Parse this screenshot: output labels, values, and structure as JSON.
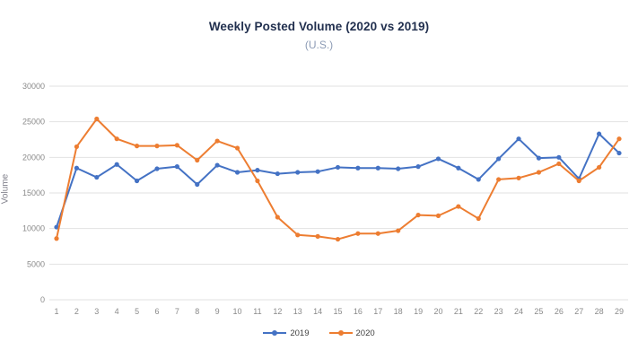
{
  "title": "Weekly Posted Volume (2020 vs 2019)",
  "subtitle": "(U.S.)",
  "colors": {
    "title": "#22304F",
    "subtitle": "#8C9BB5",
    "axis_text": "#8A8A8A",
    "gridline": "#E2E2E2",
    "series_2019": "#4472C4",
    "series_2020": "#ED7D31"
  },
  "chart_data": {
    "type": "line",
    "title": "Weekly Posted Volume (2020 vs 2019)",
    "subtitle": "(U.S.)",
    "xlabel": "",
    "ylabel": "Volume",
    "x": [
      1,
      2,
      3,
      4,
      5,
      6,
      7,
      8,
      9,
      10,
      11,
      12,
      13,
      14,
      15,
      16,
      17,
      18,
      19,
      20,
      21,
      22,
      23,
      24,
      25,
      26,
      27,
      28,
      29
    ],
    "series": [
      {
        "name": "2019",
        "color": "#4472C4",
        "values": [
          10200,
          18500,
          17200,
          19000,
          16700,
          18400,
          18700,
          16200,
          18900,
          17900,
          18200,
          17700,
          17900,
          18000,
          18600,
          18500,
          18500,
          18400,
          18700,
          19800,
          18500,
          16900,
          19800,
          22600,
          19900,
          20000,
          17000,
          23300,
          20600
        ]
      },
      {
        "name": "2020",
        "color": "#ED7D31",
        "values": [
          8600,
          21500,
          25400,
          22600,
          21600,
          21600,
          21700,
          19600,
          22300,
          21300,
          16700,
          11600,
          9100,
          8900,
          8500,
          9300,
          9300,
          9700,
          11900,
          11800,
          13100,
          11400,
          16900,
          17100,
          17900,
          19100,
          16700,
          18600,
          22600
        ]
      }
    ],
    "ylim": [
      0,
      30000
    ],
    "yticks": [
      0,
      5000,
      10000,
      15000,
      20000,
      25000,
      30000
    ],
    "grid": true,
    "legend_position": "bottom"
  },
  "legend": {
    "items": [
      {
        "label": "2019"
      },
      {
        "label": "2020"
      }
    ]
  }
}
